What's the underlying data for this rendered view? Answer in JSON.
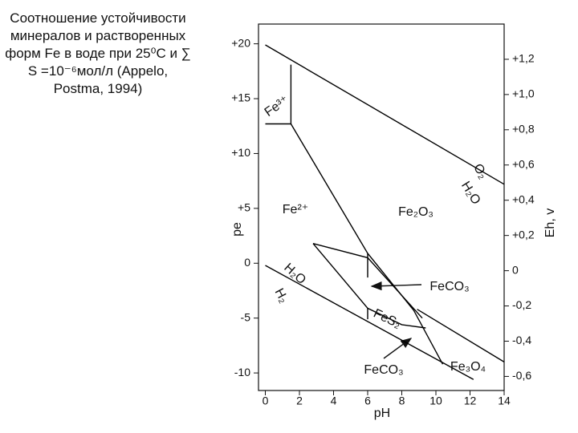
{
  "chart_data": {
    "type": "line",
    "title": "Соотношение устойчивости минералов и растворенных форм Fe в воде при 25⁰C и ∑ S =10⁻⁶мол/л (Appelo, Postma, 1994)",
    "x_label": "pH",
    "y_label": "pe",
    "y2_label": "Eh, v",
    "color": "#000000",
    "xlim": [
      -0.4,
      14
    ],
    "xticks": [
      0,
      2,
      4,
      6,
      8,
      10,
      12,
      14
    ],
    "ylim": [
      -11.6,
      21.8
    ],
    "yticks": [
      {
        "value": 20,
        "label": "+20"
      },
      {
        "value": 15,
        "label": "+15"
      },
      {
        "value": 10,
        "label": "+10"
      },
      {
        "value": 5,
        "label": "+5"
      },
      0,
      -5,
      -10
    ],
    "y2lim": [
      -0.68,
      1.4
    ],
    "y2ticks": [
      {
        "value": 1.2,
        "label": "+1,2"
      },
      {
        "value": 1.0,
        "label": "+1,0"
      },
      {
        "value": 0.8,
        "label": "+0,8"
      },
      {
        "value": 0.6,
        "label": "+0,6"
      },
      {
        "value": 0.4,
        "label": "+0,4"
      },
      {
        "value": 0.2,
        "label": "+0,2"
      },
      0,
      {
        "value": -0.2,
        "label": "-0,2"
      },
      {
        "value": -0.4,
        "label": "-0,4"
      },
      {
        "value": -0.6,
        "label": "-0,6"
      }
    ],
    "series": [
      {
        "x": [
          0,
          14
        ],
        "values": [
          19.9,
          7.2
        ]
      },
      {
        "x": [
          0,
          12.2
        ],
        "values": [
          -0.2,
          -10.6
        ]
      },
      {
        "x": [
          0,
          1.5,
          1.5
        ],
        "values": [
          12.7,
          12.7,
          18.1
        ]
      },
      {
        "x": [
          1.5,
          6.0,
          8.7,
          10.4
        ],
        "values": [
          12.7,
          0.9,
          -4.3,
          -9.2
        ]
      },
      {
        "x": [
          8.9,
          14
        ],
        "values": [
          -4.2,
          -9.0
        ]
      },
      {
        "x": [
          2.8,
          6.0,
          9.2
        ],
        "values": [
          1.8,
          0.5,
          -5.0
        ]
      },
      {
        "x": [
          2.8,
          6.0,
          8.0,
          9.4
        ],
        "values": [
          1.8,
          -4.1,
          -5.6,
          -5.9
        ]
      },
      {
        "x": [
          6.0,
          6.0
        ],
        "values": [
          0.9,
          -1.3
        ]
      },
      {
        "x": [
          6.0,
          6.0
        ],
        "values": [
          -4.1,
          -5.1
        ]
      }
    ],
    "annotations": [
      "Fe³⁺",
      "Fe²⁺",
      "Fe₂O₃",
      "O₂",
      "H₂O",
      "H₂O",
      "H₂",
      "FeCO₃",
      "FeS₂",
      "FeCO₃",
      "Fe₃O₄"
    ]
  }
}
